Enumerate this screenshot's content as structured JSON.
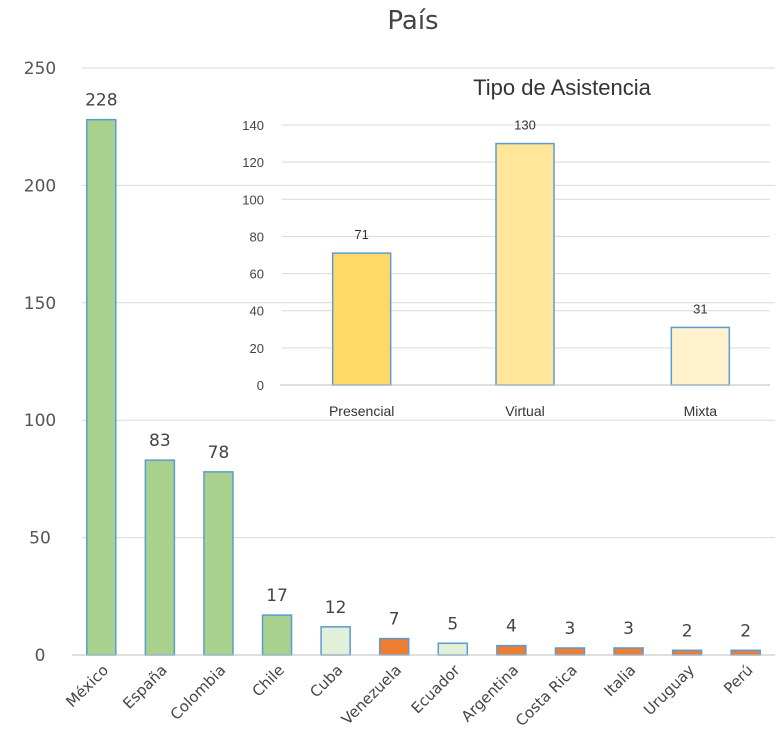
{
  "chart_data": [
    {
      "type": "bar",
      "title": "País",
      "xlabel": "",
      "ylabel": "",
      "ylim": [
        0,
        250
      ],
      "yticks": [
        0,
        50,
        100,
        150,
        200,
        250
      ],
      "grid": true,
      "categories": [
        "México",
        "España",
        "Colombia",
        "Chile",
        "Cuba",
        "Venezuela",
        "Ecuador",
        "Argentina",
        "Costa Rica",
        "Italia",
        "Uruguay",
        "Perú"
      ],
      "values": [
        228,
        83,
        78,
        17,
        12,
        7,
        5,
        4,
        3,
        3,
        2,
        2
      ],
      "bar_colors": [
        "#a9d18e",
        "#a9d18e",
        "#a9d18e",
        "#a9d18e",
        "#e2f0d9",
        "#ed7d31",
        "#e2f0d9",
        "#ed7d31",
        "#ed7d31",
        "#ed7d31",
        "#ed7d31",
        "#ed7d31"
      ],
      "bar_border": "#5b9bd5"
    },
    {
      "type": "bar",
      "title": "Tipo de Asistencia",
      "xlabel": "",
      "ylabel": "",
      "ylim": [
        0,
        140
      ],
      "yticks": [
        0,
        20,
        40,
        60,
        80,
        100,
        120,
        140
      ],
      "grid": true,
      "categories": [
        "Presencial",
        "Virtual",
        "Mixta"
      ],
      "values": [
        71,
        130,
        31
      ],
      "bar_colors": [
        "#ffd966",
        "#ffe699",
        "#fff2cc"
      ],
      "bar_border": "#5b9bd5"
    }
  ]
}
